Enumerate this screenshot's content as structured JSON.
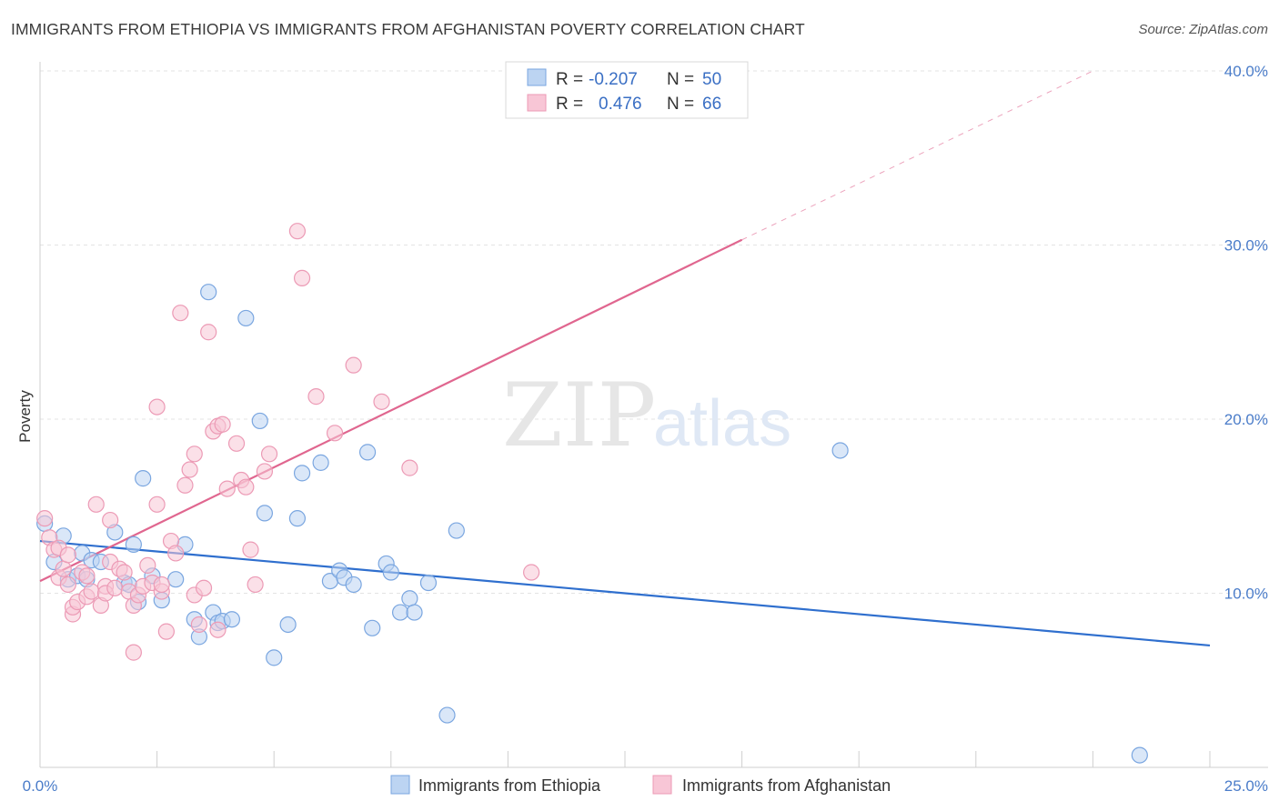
{
  "title": "IMMIGRANTS FROM ETHIOPIA VS IMMIGRANTS FROM AFGHANISTAN POVERTY CORRELATION CHART",
  "source": "Source: ZipAtlas.com",
  "watermark": {
    "zip": "ZIP",
    "atlas": "atlas"
  },
  "chart_data": {
    "type": "scatter",
    "ylabel": "Poverty",
    "xlim": [
      0,
      25
    ],
    "ylim": [
      0,
      40
    ],
    "x_ticks": [
      "0.0%",
      "25.0%"
    ],
    "y_ticks": [
      {
        "value": 10,
        "label": "10.0%"
      },
      {
        "value": 20,
        "label": "20.0%"
      },
      {
        "value": 30,
        "label": "30.0%"
      },
      {
        "value": 40,
        "label": "40.0%"
      }
    ],
    "grid": true,
    "legend_stats": [
      {
        "r_label": "R =",
        "r_value": "-0.207",
        "n_label": "N =",
        "n_value": "50",
        "color": "#a9c8f0"
      },
      {
        "r_label": "R =",
        "r_value": "0.476",
        "n_label": "N =",
        "n_value": "66",
        "color": "#f5b6cb"
      }
    ],
    "series": [
      {
        "name": "Immigrants from Ethiopia",
        "color": "#7aa6e0",
        "fill": "#bcd4f2",
        "trend": {
          "x0": 0,
          "y0": 13.0,
          "x1": 25,
          "y1": 7.0,
          "color": "#2f6fce"
        },
        "points": [
          [
            0.1,
            14.0
          ],
          [
            0.3,
            11.8
          ],
          [
            0.5,
            13.3
          ],
          [
            0.6,
            10.8
          ],
          [
            0.8,
            11.0
          ],
          [
            0.9,
            12.3
          ],
          [
            1.1,
            11.9
          ],
          [
            1.3,
            11.8
          ],
          [
            1.6,
            13.5
          ],
          [
            1.8,
            10.6
          ],
          [
            1.9,
            10.5
          ],
          [
            2.0,
            12.8
          ],
          [
            2.1,
            9.5
          ],
          [
            2.2,
            16.6
          ],
          [
            2.4,
            11.0
          ],
          [
            2.6,
            9.6
          ],
          [
            2.9,
            10.8
          ],
          [
            3.1,
            12.8
          ],
          [
            3.3,
            8.5
          ],
          [
            3.4,
            7.5
          ],
          [
            3.6,
            27.3
          ],
          [
            3.7,
            8.9
          ],
          [
            3.8,
            8.3
          ],
          [
            3.9,
            8.4
          ],
          [
            4.1,
            8.5
          ],
          [
            4.4,
            25.8
          ],
          [
            4.7,
            19.9
          ],
          [
            4.8,
            14.6
          ],
          [
            5.0,
            6.3
          ],
          [
            5.3,
            8.2
          ],
          [
            5.5,
            14.3
          ],
          [
            5.6,
            16.9
          ],
          [
            6.0,
            17.5
          ],
          [
            6.2,
            10.7
          ],
          [
            6.4,
            11.3
          ],
          [
            6.5,
            10.9
          ],
          [
            6.7,
            10.5
          ],
          [
            7.0,
            18.1
          ],
          [
            7.1,
            8.0
          ],
          [
            7.4,
            11.7
          ],
          [
            7.5,
            11.2
          ],
          [
            7.7,
            8.9
          ],
          [
            7.9,
            9.7
          ],
          [
            8.0,
            8.9
          ],
          [
            8.3,
            10.6
          ],
          [
            8.7,
            3.0
          ],
          [
            8.9,
            13.6
          ],
          [
            17.1,
            18.2
          ],
          [
            23.5,
            0.7
          ],
          [
            1.0,
            10.8
          ]
        ]
      },
      {
        "name": "Immigrants from Afghanistan",
        "color": "#ec9ab5",
        "fill": "#f8c6d6",
        "trend": {
          "x0": 0,
          "y0": 10.7,
          "x1": 15,
          "y1": 30.3,
          "x2": 22.5,
          "y2": 40.0,
          "color": "#e0668f"
        },
        "points": [
          [
            0.1,
            14.3
          ],
          [
            0.2,
            13.2
          ],
          [
            0.3,
            12.5
          ],
          [
            0.4,
            12.6
          ],
          [
            0.4,
            10.9
          ],
          [
            0.5,
            11.4
          ],
          [
            0.6,
            10.5
          ],
          [
            0.6,
            12.2
          ],
          [
            0.7,
            8.8
          ],
          [
            0.7,
            9.2
          ],
          [
            0.8,
            9.5
          ],
          [
            0.9,
            11.2
          ],
          [
            1.0,
            11.0
          ],
          [
            1.0,
            9.8
          ],
          [
            1.1,
            10.1
          ],
          [
            1.2,
            15.1
          ],
          [
            1.3,
            9.3
          ],
          [
            1.4,
            10.4
          ],
          [
            1.4,
            10.0
          ],
          [
            1.5,
            11.8
          ],
          [
            1.5,
            14.2
          ],
          [
            1.6,
            10.3
          ],
          [
            1.7,
            11.4
          ],
          [
            1.8,
            11.2
          ],
          [
            1.9,
            10.1
          ],
          [
            2.0,
            9.3
          ],
          [
            2.1,
            9.9
          ],
          [
            2.2,
            10.4
          ],
          [
            2.3,
            11.6
          ],
          [
            2.4,
            10.6
          ],
          [
            2.5,
            15.1
          ],
          [
            2.5,
            20.7
          ],
          [
            2.6,
            10.1
          ],
          [
            2.8,
            13.0
          ],
          [
            2.9,
            12.3
          ],
          [
            3.0,
            26.1
          ],
          [
            3.1,
            16.2
          ],
          [
            3.2,
            17.1
          ],
          [
            3.3,
            18.0
          ],
          [
            3.3,
            9.9
          ],
          [
            3.4,
            8.2
          ],
          [
            3.5,
            10.3
          ],
          [
            3.6,
            25.0
          ],
          [
            3.7,
            19.3
          ],
          [
            3.8,
            19.6
          ],
          [
            3.9,
            19.7
          ],
          [
            4.0,
            16.0
          ],
          [
            4.2,
            18.6
          ],
          [
            4.3,
            16.5
          ],
          [
            4.4,
            16.1
          ],
          [
            4.5,
            12.5
          ],
          [
            4.6,
            10.5
          ],
          [
            4.8,
            17.0
          ],
          [
            4.9,
            18.0
          ],
          [
            5.5,
            30.8
          ],
          [
            5.6,
            28.1
          ],
          [
            5.9,
            21.3
          ],
          [
            6.3,
            19.2
          ],
          [
            6.7,
            23.1
          ],
          [
            7.3,
            21.0
          ],
          [
            7.9,
            17.2
          ],
          [
            10.5,
            11.2
          ],
          [
            2.0,
            6.6
          ],
          [
            2.7,
            7.8
          ],
          [
            3.8,
            7.9
          ],
          [
            2.6,
            10.5
          ]
        ]
      }
    ]
  }
}
